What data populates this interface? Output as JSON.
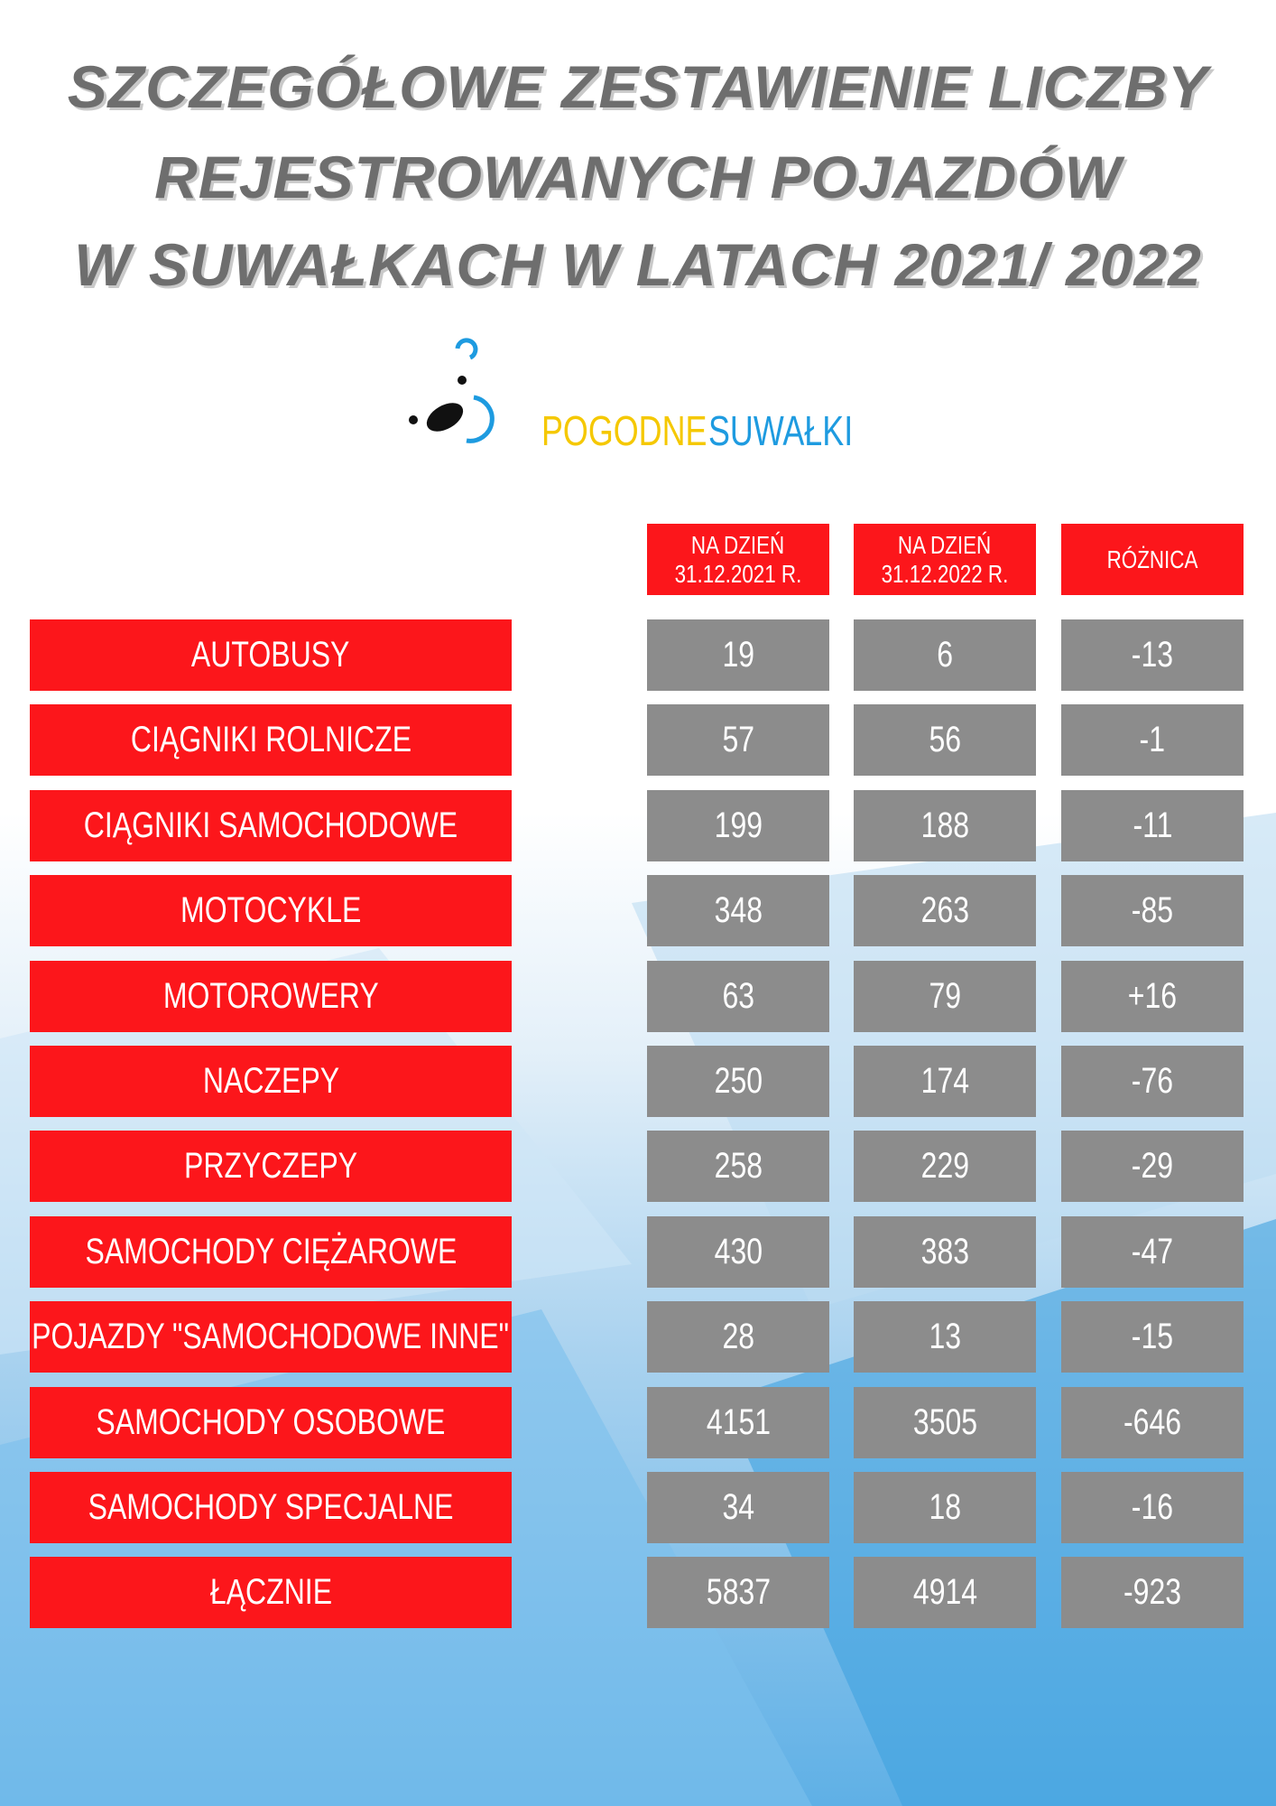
{
  "header": {
    "title": [
      "SZCZEGÓŁOWE ZESTAWIENIE LICZBY",
      "REJESTROWANYCH POJAZDÓW",
      "W SUWAŁKACH W LATACH 2021/ 2022"
    ]
  },
  "logo": {
    "word1": "POGODNE",
    "word2": "SUWAŁKI"
  },
  "table": {
    "columns": [
      [
        "NA DZIEŃ",
        "31.12.2021 R."
      ],
      [
        "NA DZIEŃ",
        "31.12.2022 R."
      ],
      [
        "RÓŻNICA"
      ]
    ],
    "rows": [
      [
        "AUTOBUSY",
        19,
        6,
        -13
      ],
      [
        "CIĄGNIKI ROLNICZE",
        57,
        56,
        -1
      ],
      [
        "CIĄGNIKI SAMOCHODOWE",
        199,
        188,
        -11
      ],
      [
        "MOTOCYKLE",
        348,
        263,
        -85
      ],
      [
        "MOTOROWERY",
        63,
        79,
        "+16"
      ],
      [
        "NACZEPY",
        250,
        174,
        -76
      ],
      [
        "PRZYCZEPY",
        258,
        229,
        -29
      ],
      [
        "SAMOCHODY CIĘŻAROWE",
        430,
        383,
        -47
      ],
      [
        "POJAZDY \"SAMOCHODOWE INNE\"",
        28,
        13,
        -15
      ],
      [
        "SAMOCHODY OSOBOWE",
        4151,
        3505,
        -646
      ],
      [
        "SAMOCHODY SPECJALNE",
        34,
        18,
        -16
      ],
      [
        "ŁĄCZNIE",
        5837,
        4914,
        -923
      ]
    ]
  }
}
